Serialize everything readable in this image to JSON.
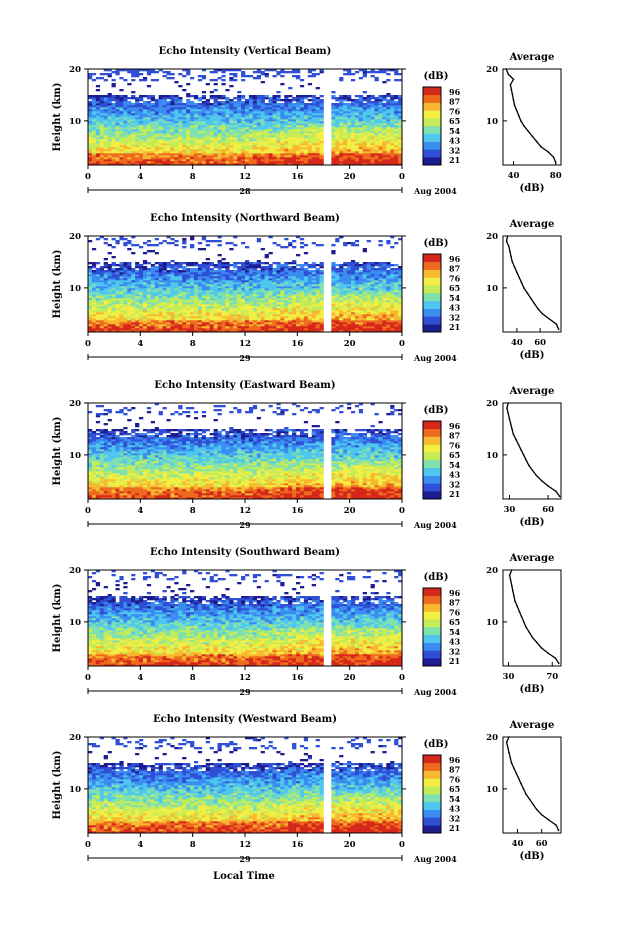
{
  "figure": {
    "xlabel": "Local Time",
    "date_label": "Aug 2004",
    "colorbar_unit": "(dB)",
    "colorbar_ticks": [
      "96",
      "87",
      "76",
      "65",
      "54",
      "43",
      "32",
      "21"
    ],
    "colors": [
      "#1d1d8f",
      "#2f4fd6",
      "#3b8cf0",
      "#4fc6ee",
      "#7fe0b0",
      "#c4ec58",
      "#f2ee44",
      "#f8b830",
      "#ee6a1e",
      "#d6281a"
    ]
  },
  "chart_data": [
    {
      "type": "heatmap",
      "title": "Echo Intensity (Vertical Beam)",
      "ylabel": "Height (km)",
      "xlim": [
        0,
        24
      ],
      "ylim": [
        1.5,
        20
      ],
      "x_ticks": [
        "0",
        "4",
        "8",
        "12",
        "16",
        "20",
        "0"
      ],
      "y_ticks": [
        "20",
        "10"
      ],
      "day_label": "28",
      "data_gap_hour": 18.2,
      "profile": {
        "title": "Average",
        "xlabel": "(dB)",
        "x_ticks": [
          "40",
          "80"
        ],
        "xlim": [
          30,
          85
        ],
        "y_ticks": [
          "20",
          "10"
        ],
        "heights": [
          2,
          3,
          4,
          5,
          6,
          7,
          8,
          9,
          10,
          11,
          12,
          13,
          14,
          15,
          16,
          17,
          18,
          19,
          20
        ],
        "values": [
          80,
          78,
          73,
          66,
          62,
          58,
          54,
          50,
          47,
          45,
          43,
          41,
          40,
          39,
          38,
          37,
          40,
          35,
          33
        ]
      }
    },
    {
      "type": "heatmap",
      "title": "Echo Intensity (Northward Beam)",
      "ylabel": "Height (km)",
      "xlim": [
        0,
        24
      ],
      "ylim": [
        1.5,
        20
      ],
      "x_ticks": [
        "0",
        "4",
        "8",
        "12",
        "16",
        "20",
        "0"
      ],
      "y_ticks": [
        "20",
        "10"
      ],
      "day_label": "29",
      "data_gap_hour": 18.2,
      "profile": {
        "title": "Average",
        "xlabel": "(dB)",
        "x_ticks": [
          "40",
          "60"
        ],
        "xlim": [
          28,
          78
        ],
        "y_ticks": [
          "20",
          "10"
        ],
        "heights": [
          2,
          3,
          4,
          5,
          6,
          7,
          8,
          9,
          10,
          11,
          12,
          13,
          14,
          15,
          16,
          17,
          18,
          19,
          20
        ],
        "values": [
          76,
          74,
          68,
          62,
          58,
          55,
          52,
          49,
          46,
          44,
          42,
          40,
          38,
          36,
          35,
          34,
          33,
          31,
          32
        ]
      }
    },
    {
      "type": "heatmap",
      "title": "Echo Intensity (Eastward Beam)",
      "ylabel": "Height (km)",
      "xlim": [
        0,
        24
      ],
      "ylim": [
        1.5,
        20
      ],
      "x_ticks": [
        "0",
        "4",
        "8",
        "12",
        "16",
        "20",
        "0"
      ],
      "y_ticks": [
        "20",
        "10"
      ],
      "day_label": "29",
      "data_gap_hour": 18.2,
      "profile": {
        "title": "Average",
        "xlabel": "(dB)",
        "x_ticks": [
          "30",
          "60"
        ],
        "xlim": [
          25,
          70
        ],
        "y_ticks": [
          "20",
          "10"
        ],
        "heights": [
          2,
          3,
          4,
          5,
          6,
          7,
          8,
          9,
          10,
          11,
          12,
          13,
          14,
          15,
          16,
          17,
          18,
          19,
          20
        ],
        "values": [
          69,
          66,
          60,
          55,
          51,
          48,
          45,
          43,
          41,
          39,
          37,
          35,
          33,
          32,
          31,
          30,
          29,
          28,
          29
        ]
      }
    },
    {
      "type": "heatmap",
      "title": "Echo Intensity (Southward Beam)",
      "ylabel": "Height (km)",
      "xlim": [
        0,
        24
      ],
      "ylim": [
        1.5,
        20
      ],
      "x_ticks": [
        "0",
        "4",
        "8",
        "12",
        "16",
        "20",
        "0"
      ],
      "y_ticks": [
        "20",
        "10"
      ],
      "day_label": "29",
      "data_gap_hour": 18.2,
      "profile": {
        "title": "Average",
        "xlabel": "(dB)",
        "x_ticks": [
          "30",
          "70"
        ],
        "xlim": [
          25,
          78
        ],
        "y_ticks": [
          "20",
          "10"
        ],
        "heights": [
          2,
          3,
          4,
          5,
          6,
          7,
          8,
          9,
          10,
          11,
          12,
          13,
          14,
          15,
          16,
          17,
          18,
          19,
          20
        ],
        "values": [
          76,
          73,
          66,
          60,
          56,
          52,
          49,
          46,
          44,
          42,
          40,
          38,
          36,
          35,
          34,
          33,
          32,
          31,
          33
        ]
      }
    },
    {
      "type": "heatmap",
      "title": "Echo Intensity (Westward Beam)",
      "ylabel": "Height (km)",
      "xlim": [
        0,
        24
      ],
      "ylim": [
        1.5,
        20
      ],
      "x_ticks": [
        "0",
        "4",
        "8",
        "12",
        "16",
        "20",
        "0"
      ],
      "y_ticks": [
        "20",
        "10"
      ],
      "day_label": "29",
      "data_gap_hour": 18.2,
      "profile": {
        "title": "Average",
        "xlabel": "(dB)",
        "x_ticks": [
          "40",
          "60"
        ],
        "xlim": [
          28,
          76
        ],
        "y_ticks": [
          "20",
          "10"
        ],
        "heights": [
          2,
          3,
          4,
          5,
          6,
          7,
          8,
          9,
          10,
          11,
          12,
          13,
          14,
          15,
          16,
          17,
          18,
          19,
          20
        ],
        "values": [
          74,
          72,
          66,
          60,
          56,
          53,
          50,
          47,
          45,
          43,
          41,
          39,
          37,
          35,
          34,
          33,
          32,
          31,
          33
        ]
      }
    }
  ]
}
